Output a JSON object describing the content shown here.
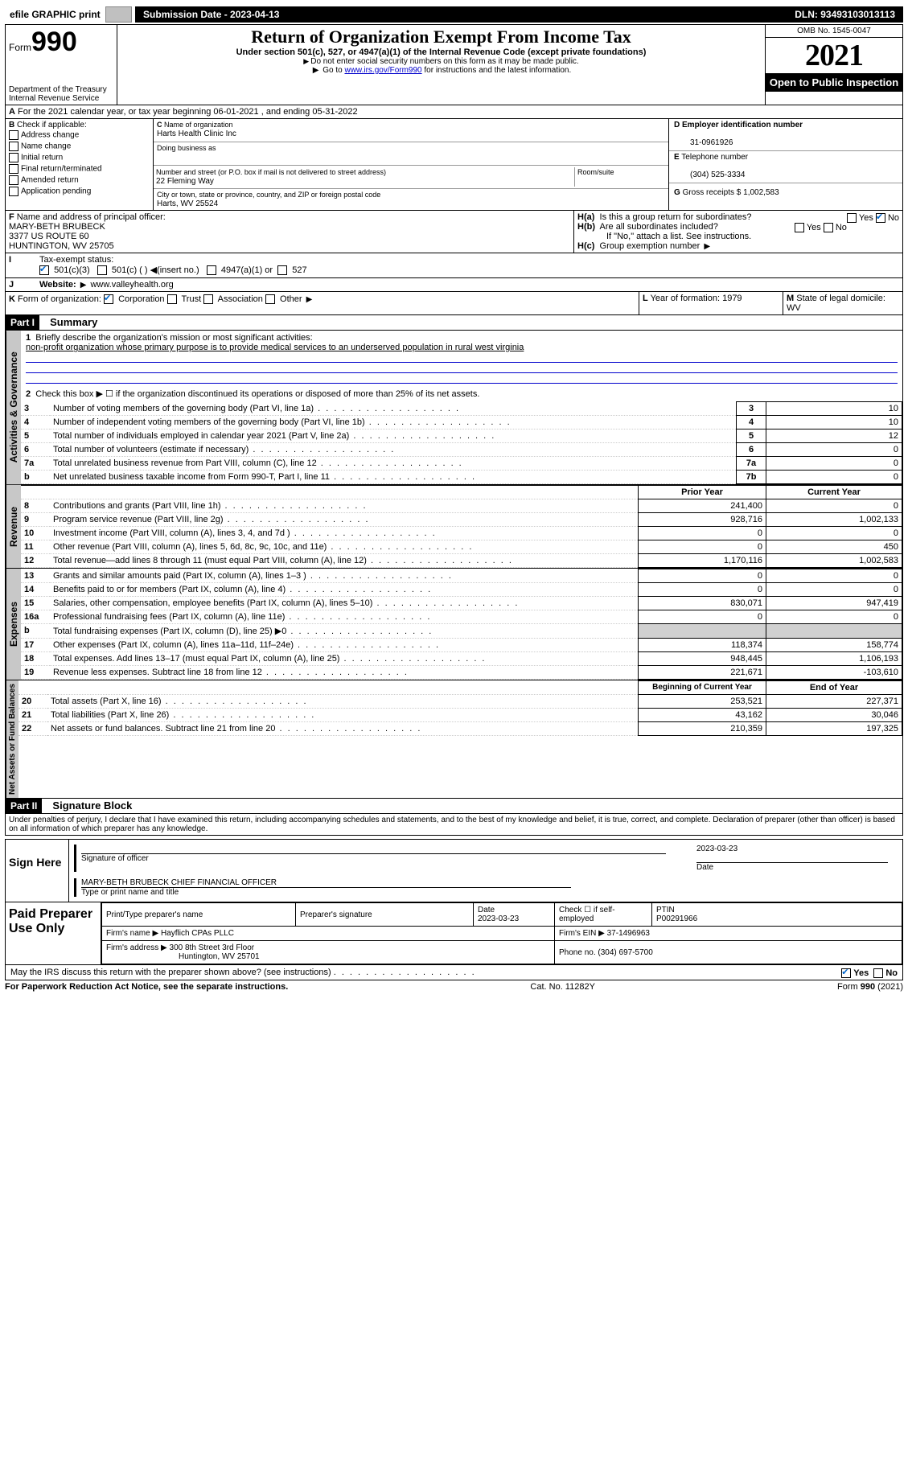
{
  "top": {
    "efile": "efile GRAPHIC print",
    "submission_label": "Submission Date - 2023-04-13",
    "dln": "DLN: 93493103013113"
  },
  "header": {
    "form_prefix": "Form",
    "form_num": "990",
    "dept": "Department of the Treasury",
    "irs": "Internal Revenue Service",
    "title": "Return of Organization Exempt From Income Tax",
    "subtitle": "Under section 501(c), 527, or 4947(a)(1) of the Internal Revenue Code (except private foundations)",
    "line1": "Do not enter social security numbers on this form as it may be made public.",
    "line2_pre": "Go to ",
    "line2_link": "www.irs.gov/Form990",
    "line2_post": " for instructions and the latest information.",
    "omb": "OMB No. 1545-0047",
    "year": "2021",
    "open": "Open to Public Inspection"
  },
  "A": {
    "text": "For the 2021 calendar year, or tax year beginning 06-01-2021   , and ending 05-31-2022"
  },
  "B": {
    "title": "Check if applicable:",
    "items": [
      "Address change",
      "Name change",
      "Initial return",
      "Final return/terminated",
      "Amended return",
      "Application pending"
    ]
  },
  "C": {
    "name_lbl": "Name of organization",
    "name": "Harts Health Clinic Inc",
    "dba_lbl": "Doing business as",
    "dba": "",
    "street_lbl": "Number and street (or P.O. box if mail is not delivered to street address)",
    "room_lbl": "Room/suite",
    "street": "22 Fleming Way",
    "city_lbl": "City or town, state or province, country, and ZIP or foreign postal code",
    "city": "Harts, WV  25524"
  },
  "D": {
    "lbl": "Employer identification number",
    "val": "31-0961926"
  },
  "E": {
    "lbl": "Telephone number",
    "val": "(304) 525-3334"
  },
  "G": {
    "lbl": "Gross receipts $",
    "val": "1,002,583"
  },
  "F": {
    "lbl": "Name and address of principal officer:",
    "name": "MARY-BETH BRUBECK",
    "addr1": "3377 US ROUTE 60",
    "addr2": "HUNTINGTON, WV  25705"
  },
  "H": {
    "a": "Is this a group return for subordinates?",
    "b": "Are all subordinates included?",
    "b_note": "If \"No,\" attach a list. See instructions.",
    "c": "Group exemption number"
  },
  "I": {
    "lbl": "Tax-exempt status:",
    "opts": [
      "501(c)(3)",
      "501(c) (  ) ◀(insert no.)",
      "4947(a)(1) or",
      "527"
    ]
  },
  "J": {
    "lbl": "Website:",
    "val": "www.valleyhealth.org"
  },
  "K": {
    "lbl": "Form of organization:",
    "opts": [
      "Corporation",
      "Trust",
      "Association",
      "Other"
    ]
  },
  "L": {
    "lbl": "Year of formation:",
    "val": "1979"
  },
  "M": {
    "lbl": "State of legal domicile:",
    "val": "WV"
  },
  "part1": {
    "hdr": "Part I",
    "title": "Summary",
    "l1_lbl": "Briefly describe the organization's mission or most significant activities:",
    "l1_txt": "non-profit organization whose primary purpose is to provide medical services to an underserved population in rural west virginia",
    "l2": "Check this box ▶ ☐  if the organization discontinued its operations or disposed of more than 25% of its net assets.",
    "rows_gov": [
      {
        "n": "3",
        "t": "Number of voting members of the governing body (Part VI, line 1a)",
        "box": "3",
        "v": "10"
      },
      {
        "n": "4",
        "t": "Number of independent voting members of the governing body (Part VI, line 1b)",
        "box": "4",
        "v": "10"
      },
      {
        "n": "5",
        "t": "Total number of individuals employed in calendar year 2021 (Part V, line 2a)",
        "box": "5",
        "v": "12"
      },
      {
        "n": "6",
        "t": "Total number of volunteers (estimate if necessary)",
        "box": "6",
        "v": "0"
      },
      {
        "n": "7a",
        "t": "Total unrelated business revenue from Part VIII, column (C), line 12",
        "box": "7a",
        "v": "0"
      },
      {
        "n": "b",
        "t": "Net unrelated business taxable income from Form 990-T, Part I, line 11",
        "box": "7b",
        "v": "0"
      }
    ],
    "col_prior": "Prior Year",
    "col_curr": "Current Year",
    "rev": [
      {
        "n": "8",
        "t": "Contributions and grants (Part VIII, line 1h)",
        "p": "241,400",
        "c": "0"
      },
      {
        "n": "9",
        "t": "Program service revenue (Part VIII, line 2g)",
        "p": "928,716",
        "c": "1,002,133"
      },
      {
        "n": "10",
        "t": "Investment income (Part VIII, column (A), lines 3, 4, and 7d )",
        "p": "0",
        "c": "0"
      },
      {
        "n": "11",
        "t": "Other revenue (Part VIII, column (A), lines 5, 6d, 8c, 9c, 10c, and 11e)",
        "p": "0",
        "c": "450"
      },
      {
        "n": "12",
        "t": "Total revenue—add lines 8 through 11 (must equal Part VIII, column (A), line 12)",
        "p": "1,170,116",
        "c": "1,002,583"
      }
    ],
    "exp": [
      {
        "n": "13",
        "t": "Grants and similar amounts paid (Part IX, column (A), lines 1–3 )",
        "p": "0",
        "c": "0"
      },
      {
        "n": "14",
        "t": "Benefits paid to or for members (Part IX, column (A), line 4)",
        "p": "0",
        "c": "0"
      },
      {
        "n": "15",
        "t": "Salaries, other compensation, employee benefits (Part IX, column (A), lines 5–10)",
        "p": "830,071",
        "c": "947,419"
      },
      {
        "n": "16a",
        "t": "Professional fundraising fees (Part IX, column (A), line 11e)",
        "p": "0",
        "c": "0"
      },
      {
        "n": "b",
        "t": "Total fundraising expenses (Part IX, column (D), line 25) ▶0",
        "p": "",
        "c": "",
        "grey": true
      },
      {
        "n": "17",
        "t": "Other expenses (Part IX, column (A), lines 11a–11d, 11f–24e)",
        "p": "118,374",
        "c": "158,774"
      },
      {
        "n": "18",
        "t": "Total expenses. Add lines 13–17 (must equal Part IX, column (A), line 25)",
        "p": "948,445",
        "c": "1,106,193"
      },
      {
        "n": "19",
        "t": "Revenue less expenses. Subtract line 18 from line 12",
        "p": "221,671",
        "c": "-103,610"
      }
    ],
    "col_beg": "Beginning of Current Year",
    "col_end": "End of Year",
    "net": [
      {
        "n": "20",
        "t": "Total assets (Part X, line 16)",
        "p": "253,521",
        "c": "227,371"
      },
      {
        "n": "21",
        "t": "Total liabilities (Part X, line 26)",
        "p": "43,162",
        "c": "30,046"
      },
      {
        "n": "22",
        "t": "Net assets or fund balances. Subtract line 21 from line 20",
        "p": "210,359",
        "c": "197,325"
      }
    ]
  },
  "tabs": {
    "gov": "Activities & Governance",
    "rev": "Revenue",
    "exp": "Expenses",
    "net": "Net Assets or Fund Balances"
  },
  "part2": {
    "hdr": "Part II",
    "title": "Signature Block",
    "decl": "Under penalties of perjury, I declare that I have examined this return, including accompanying schedules and statements, and to the best of my knowledge and belief, it is true, correct, and complete. Declaration of preparer (other than officer) is based on all information of which preparer has any knowledge."
  },
  "sign": {
    "here": "Sign Here",
    "sig_lbl": "Signature of officer",
    "date_lbl": "Date",
    "date": "2023-03-23",
    "name": "MARY-BETH BRUBECK  CHIEF FINANCIAL OFFICER",
    "name_lbl": "Type or print name and title"
  },
  "prep": {
    "title": "Paid Preparer Use Only",
    "h1": "Print/Type preparer's name",
    "h2": "Preparer's signature",
    "h3": "Date",
    "date": "2023-03-23",
    "h4": "Check ☐ if self-employed",
    "h5": "PTIN",
    "ptin": "P00291966",
    "firm_lbl": "Firm's name   ▶",
    "firm": "Hayflich CPAs PLLC",
    "ein_lbl": "Firm's EIN ▶",
    "ein": "37-1496963",
    "addr_lbl": "Firm's address ▶",
    "addr1": "300 8th Street 3rd Floor",
    "addr2": "Huntington, WV  25701",
    "phone_lbl": "Phone no.",
    "phone": "(304) 697-5700"
  },
  "discuss": {
    "q": "May the IRS discuss this return with the preparer shown above? (see instructions)",
    "yes": "Yes",
    "no": "No"
  },
  "footer": {
    "left": "For Paperwork Reduction Act Notice, see the separate instructions.",
    "mid": "Cat. No. 11282Y",
    "right": "Form 990 (2021)"
  },
  "colors": {
    "link": "#0000cc",
    "check": "#0066cc",
    "grey": "#c8c8c8"
  }
}
